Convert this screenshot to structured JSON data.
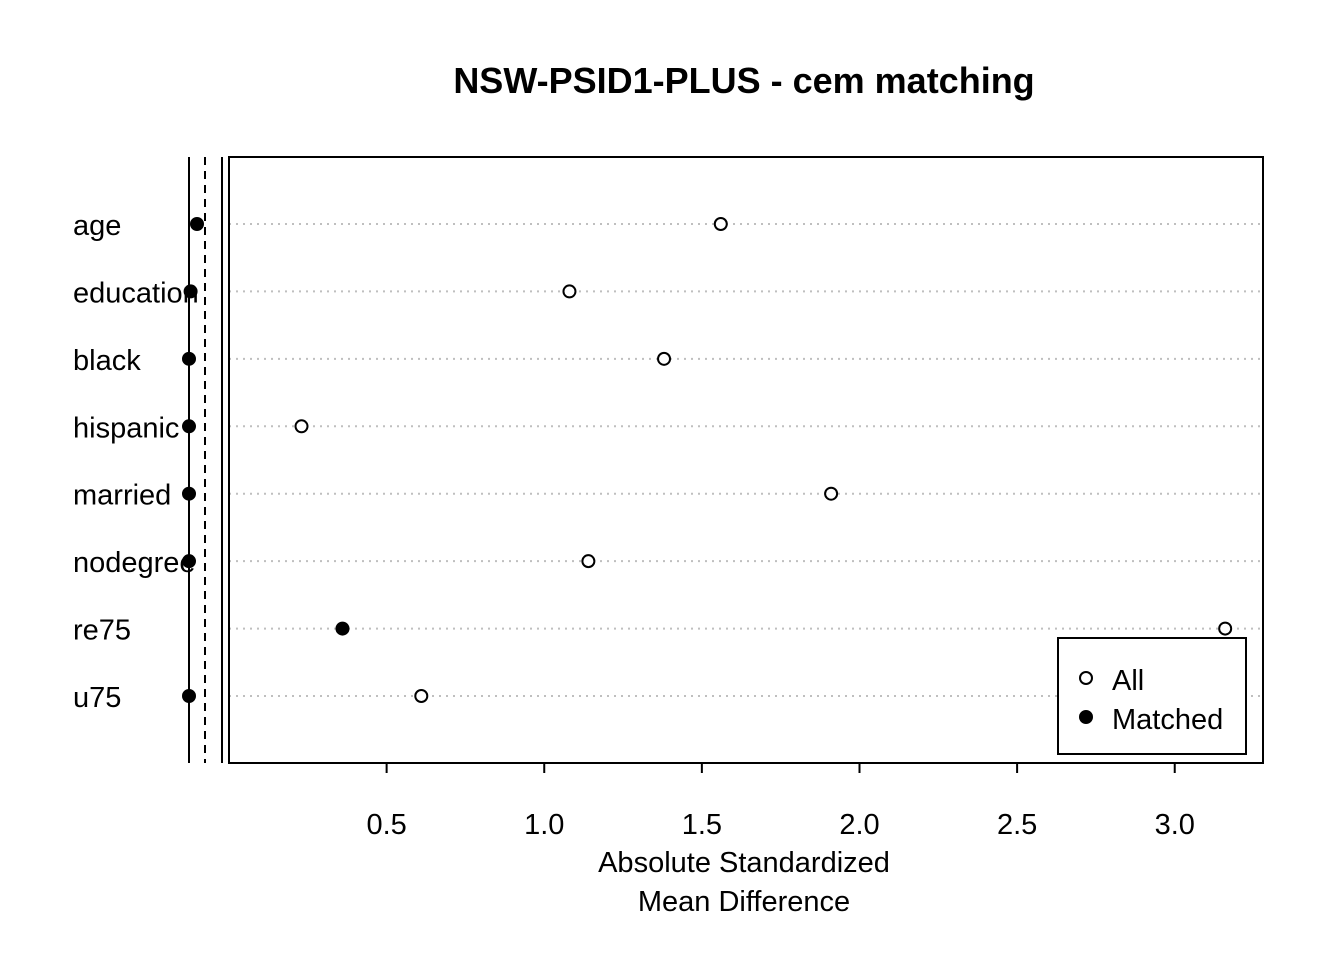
{
  "chart_data": {
    "type": "scatter",
    "title": "NSW-PSID1-PLUS - cem matching",
    "xlabel_lines": [
      "Absolute Standardized",
      "Mean Difference"
    ],
    "ylabel": "",
    "xticks": [
      0.5,
      1.0,
      1.5,
      2.0,
      2.5,
      3.0
    ],
    "xtick_labels": [
      "0.5",
      "1.0",
      "1.5",
      "2.0",
      "2.5",
      "3.0"
    ],
    "xlim": [
      0.0,
      3.28
    ],
    "categories": [
      "age",
      "education",
      "black",
      "hispanic",
      "married",
      "nodegree",
      "re75",
      "u75"
    ],
    "series": [
      {
        "name": "All",
        "marker": "open-circle",
        "values": [
          1.56,
          1.08,
          1.38,
          0.23,
          1.91,
          1.14,
          3.16,
          0.61
        ]
      },
      {
        "name": "Matched",
        "marker": "filled-circle",
        "values": [
          0.025,
          0.005,
          0.0,
          0.0,
          0.0,
          0.0,
          0.36,
          0.0
        ]
      }
    ],
    "reference_lines": {
      "left_panel_solid": 0.0,
      "left_panel_dashed": 0.05
    },
    "grid": "dotted horizontal",
    "legend_position": "bottom-right"
  }
}
